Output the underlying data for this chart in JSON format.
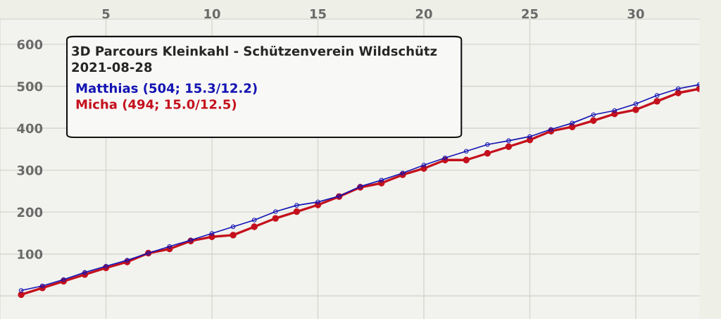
{
  "chart_data": {
    "type": "line",
    "title": "3D Parcours Kleinkahl - Schützenverein Wildschütz",
    "subtitle": "2021-08-28",
    "x": [
      1,
      2,
      3,
      4,
      5,
      6,
      7,
      8,
      9,
      10,
      11,
      12,
      13,
      14,
      15,
      16,
      17,
      18,
      19,
      20,
      21,
      22,
      23,
      24,
      25,
      26,
      27,
      28,
      29,
      30,
      31,
      32,
      33
    ],
    "series": [
      {
        "name": "Matthias (504; 15.3/12.2)",
        "color": "#1414b4",
        "values": [
          13,
          24,
          39,
          56,
          71,
          85,
          102,
          118,
          133,
          149,
          165,
          181,
          201,
          216,
          224,
          238,
          261,
          276,
          293,
          312,
          329,
          345,
          361,
          370,
          380,
          397,
          412,
          432,
          442,
          458,
          478,
          494,
          504
        ]
      },
      {
        "name": "Micha (494; 15.0/12.5)",
        "color": "#c4101c",
        "values": [
          3,
          19,
          35,
          51,
          67,
          81,
          102,
          112,
          131,
          141,
          145,
          165,
          185,
          201,
          217,
          237,
          259,
          269,
          289,
          304,
          324,
          324,
          340,
          356,
          372,
          393,
          403,
          418,
          434,
          444,
          464,
          484,
          494
        ]
      }
    ],
    "xlim": [
      0,
      33
    ],
    "xticks": [
      5,
      10,
      15,
      20,
      25,
      30
    ],
    "ylim": [
      -55,
      660
    ],
    "yticks": [
      {
        "value": 0,
        "label": null
      },
      100,
      200,
      300,
      400,
      500,
      600
    ],
    "grid": true,
    "legend": "top left",
    "marker": "circle",
    "line_style": "solid"
  }
}
